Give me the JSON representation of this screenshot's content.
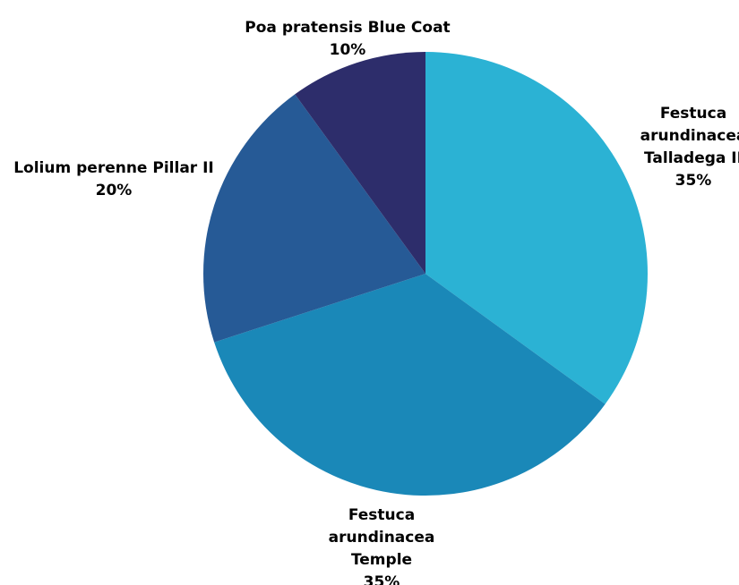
{
  "chart_data": {
    "type": "pie",
    "title": "",
    "start_angle_deg": 0,
    "direction": "clockwise",
    "slices": [
      {
        "label": "Festuca arundinacea Talladega II",
        "label_lines": [
          "Festuca",
          "arundinacea",
          "Talladega II"
        ],
        "value": 35,
        "value_label": "35%",
        "color": "#2bb2d4"
      },
      {
        "label": "Festuca arundinacea Temple",
        "label_lines": [
          "Festuca",
          "arundinacea",
          "Temple"
        ],
        "value": 35,
        "value_label": "35%",
        "color": "#1a88b8"
      },
      {
        "label": "Lolium perenne Pillar II",
        "label_lines": [
          "Lolium perenne Pillar II"
        ],
        "value": 20,
        "value_label": "20%",
        "color": "#265a96"
      },
      {
        "label": "Poa pratensis Blue Coat",
        "label_lines": [
          "Poa pratensis Blue Coat"
        ],
        "value": 10,
        "value_label": "10%",
        "color": "#2d2d6b"
      }
    ]
  }
}
